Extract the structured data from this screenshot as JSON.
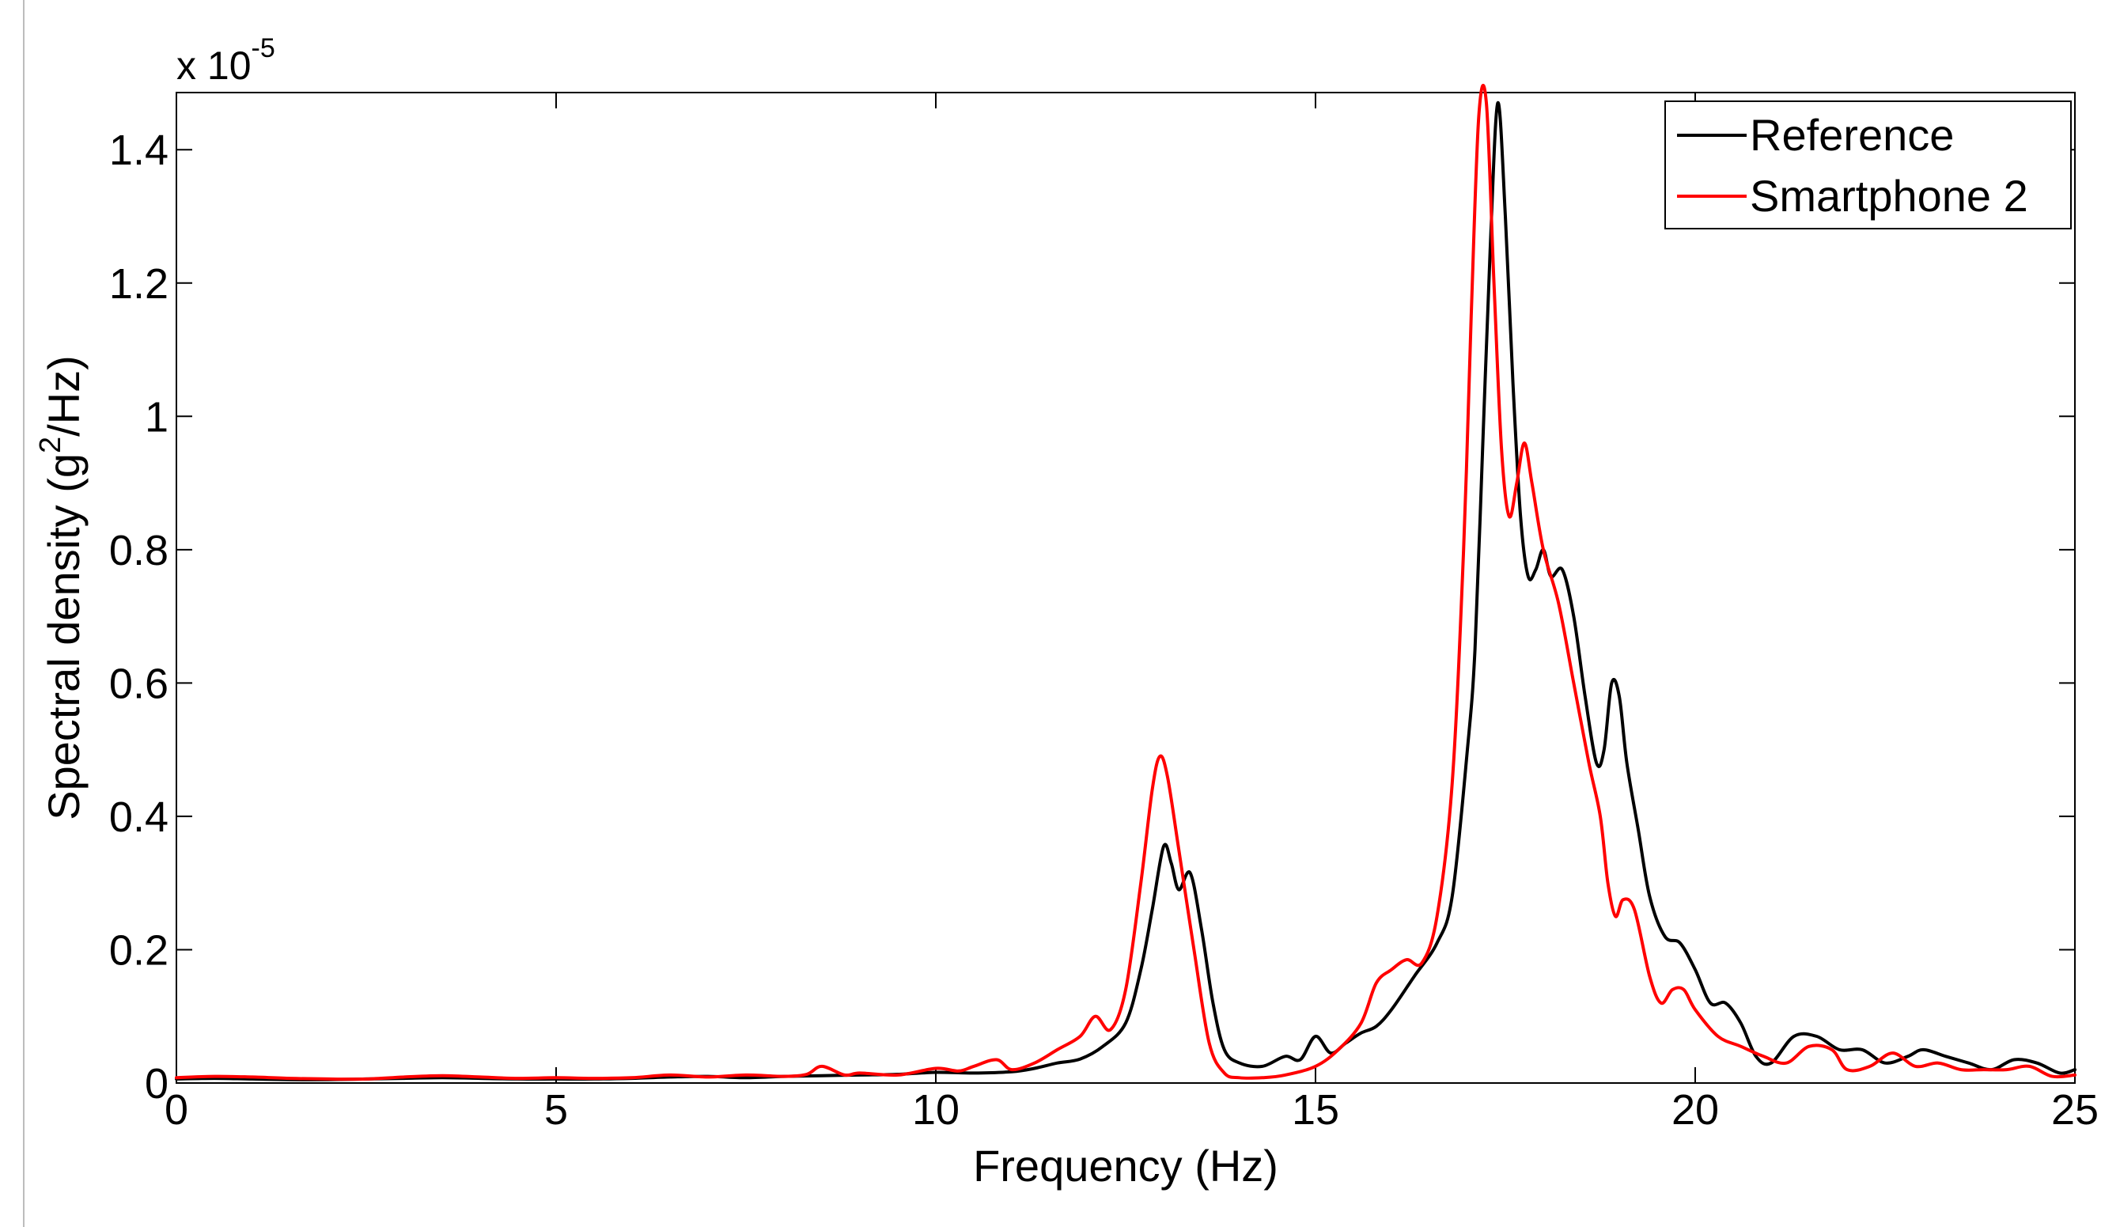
{
  "chart_data": {
    "type": "line",
    "title": "",
    "xlabel": "Frequency (Hz)",
    "ylabel_main": "Spectral density (g",
    "ylabel_sup": "2",
    "ylabel_tail": "/Hz)",
    "exponent_base": "x 10",
    "exponent_power": "-5",
    "xlim": [
      0,
      25
    ],
    "ylim": [
      0,
      1.4857
    ],
    "x_ticks": [
      0,
      5,
      10,
      15,
      20,
      25
    ],
    "x_tick_labels": [
      "0",
      "5",
      "10",
      "15",
      "20",
      "25"
    ],
    "y_ticks": [
      0,
      0.2,
      0.4,
      0.6,
      0.8,
      1.0,
      1.2,
      1.4
    ],
    "y_tick_labels": [
      "0",
      "0.2",
      "0.4",
      "0.6",
      "0.8",
      "1",
      "1.2",
      "1.4"
    ],
    "y_units_multiplier": "1e-5",
    "grid": false,
    "legend_position": "top-right",
    "series": [
      {
        "name": "Reference",
        "color": "#000000",
        "points": [
          [
            0.0,
            0.006
          ],
          [
            0.5,
            0.007
          ],
          [
            1.0,
            0.006
          ],
          [
            1.5,
            0.005
          ],
          [
            2.0,
            0.005
          ],
          [
            2.5,
            0.006
          ],
          [
            3.0,
            0.007
          ],
          [
            3.5,
            0.008
          ],
          [
            4.0,
            0.007
          ],
          [
            4.5,
            0.006
          ],
          [
            5.0,
            0.006
          ],
          [
            5.5,
            0.006
          ],
          [
            6.0,
            0.007
          ],
          [
            6.5,
            0.009
          ],
          [
            7.0,
            0.01
          ],
          [
            7.5,
            0.008
          ],
          [
            8.0,
            0.01
          ],
          [
            8.5,
            0.011
          ],
          [
            9.0,
            0.012
          ],
          [
            9.5,
            0.013
          ],
          [
            10.0,
            0.016
          ],
          [
            10.5,
            0.015
          ],
          [
            11.0,
            0.017
          ],
          [
            11.3,
            0.022
          ],
          [
            11.6,
            0.03
          ],
          [
            11.9,
            0.036
          ],
          [
            12.2,
            0.055
          ],
          [
            12.5,
            0.09
          ],
          [
            12.7,
            0.17
          ],
          [
            12.85,
            0.26
          ],
          [
            13.0,
            0.355
          ],
          [
            13.1,
            0.33
          ],
          [
            13.2,
            0.29
          ],
          [
            13.35,
            0.315
          ],
          [
            13.5,
            0.23
          ],
          [
            13.65,
            0.12
          ],
          [
            13.8,
            0.05
          ],
          [
            14.0,
            0.03
          ],
          [
            14.3,
            0.025
          ],
          [
            14.6,
            0.04
          ],
          [
            14.8,
            0.035
          ],
          [
            15.0,
            0.07
          ],
          [
            15.2,
            0.045
          ],
          [
            15.4,
            0.06
          ],
          [
            15.6,
            0.075
          ],
          [
            15.8,
            0.085
          ],
          [
            16.0,
            0.11
          ],
          [
            16.3,
            0.16
          ],
          [
            16.6,
            0.21
          ],
          [
            16.8,
            0.28
          ],
          [
            17.0,
            0.5
          ],
          [
            17.1,
            0.65
          ],
          [
            17.2,
            0.95
          ],
          [
            17.3,
            1.25
          ],
          [
            17.4,
            1.47
          ],
          [
            17.5,
            1.3
          ],
          [
            17.6,
            1.05
          ],
          [
            17.7,
            0.85
          ],
          [
            17.8,
            0.76
          ],
          [
            17.9,
            0.77
          ],
          [
            18.0,
            0.8
          ],
          [
            18.1,
            0.76
          ],
          [
            18.25,
            0.77
          ],
          [
            18.4,
            0.7
          ],
          [
            18.55,
            0.58
          ],
          [
            18.7,
            0.48
          ],
          [
            18.8,
            0.5
          ],
          [
            18.9,
            0.6
          ],
          [
            19.0,
            0.58
          ],
          [
            19.1,
            0.48
          ],
          [
            19.25,
            0.38
          ],
          [
            19.4,
            0.28
          ],
          [
            19.6,
            0.22
          ],
          [
            19.8,
            0.21
          ],
          [
            20.0,
            0.17
          ],
          [
            20.2,
            0.12
          ],
          [
            20.4,
            0.12
          ],
          [
            20.6,
            0.09
          ],
          [
            20.8,
            0.04
          ],
          [
            21.0,
            0.03
          ],
          [
            21.3,
            0.07
          ],
          [
            21.6,
            0.07
          ],
          [
            21.9,
            0.05
          ],
          [
            22.2,
            0.05
          ],
          [
            22.5,
            0.03
          ],
          [
            22.8,
            0.04
          ],
          [
            23.0,
            0.05
          ],
          [
            23.3,
            0.04
          ],
          [
            23.6,
            0.03
          ],
          [
            23.9,
            0.02
          ],
          [
            24.2,
            0.035
          ],
          [
            24.5,
            0.03
          ],
          [
            24.8,
            0.015
          ],
          [
            25.0,
            0.02
          ]
        ]
      },
      {
        "name": "Smartphone 2",
        "color": "#ff0000",
        "points": [
          [
            0.0,
            0.008
          ],
          [
            0.5,
            0.01
          ],
          [
            1.0,
            0.009
          ],
          [
            1.5,
            0.007
          ],
          [
            2.0,
            0.006
          ],
          [
            2.5,
            0.006
          ],
          [
            3.0,
            0.009
          ],
          [
            3.5,
            0.011
          ],
          [
            4.0,
            0.009
          ],
          [
            4.5,
            0.007
          ],
          [
            5.0,
            0.008
          ],
          [
            5.5,
            0.007
          ],
          [
            6.0,
            0.008
          ],
          [
            6.5,
            0.012
          ],
          [
            7.0,
            0.009
          ],
          [
            7.5,
            0.012
          ],
          [
            8.0,
            0.01
          ],
          [
            8.3,
            0.013
          ],
          [
            8.5,
            0.025
          ],
          [
            8.8,
            0.012
          ],
          [
            9.0,
            0.015
          ],
          [
            9.5,
            0.012
          ],
          [
            10.0,
            0.022
          ],
          [
            10.3,
            0.018
          ],
          [
            10.5,
            0.025
          ],
          [
            10.8,
            0.035
          ],
          [
            11.0,
            0.02
          ],
          [
            11.3,
            0.03
          ],
          [
            11.6,
            0.05
          ],
          [
            11.9,
            0.07
          ],
          [
            12.1,
            0.1
          ],
          [
            12.3,
            0.08
          ],
          [
            12.5,
            0.14
          ],
          [
            12.7,
            0.3
          ],
          [
            12.85,
            0.44
          ],
          [
            12.95,
            0.49
          ],
          [
            13.05,
            0.46
          ],
          [
            13.2,
            0.35
          ],
          [
            13.4,
            0.2
          ],
          [
            13.6,
            0.06
          ],
          [
            13.8,
            0.015
          ],
          [
            14.0,
            0.008
          ],
          [
            14.3,
            0.008
          ],
          [
            14.6,
            0.012
          ],
          [
            15.0,
            0.025
          ],
          [
            15.3,
            0.05
          ],
          [
            15.6,
            0.09
          ],
          [
            15.8,
            0.15
          ],
          [
            16.0,
            0.17
          ],
          [
            16.2,
            0.185
          ],
          [
            16.4,
            0.18
          ],
          [
            16.6,
            0.25
          ],
          [
            16.8,
            0.45
          ],
          [
            16.95,
            0.8
          ],
          [
            17.05,
            1.15
          ],
          [
            17.15,
            1.45
          ],
          [
            17.25,
            1.47
          ],
          [
            17.35,
            1.2
          ],
          [
            17.45,
            0.95
          ],
          [
            17.55,
            0.85
          ],
          [
            17.65,
            0.9
          ],
          [
            17.75,
            0.96
          ],
          [
            17.85,
            0.9
          ],
          [
            18.0,
            0.8
          ],
          [
            18.2,
            0.72
          ],
          [
            18.4,
            0.6
          ],
          [
            18.6,
            0.48
          ],
          [
            18.75,
            0.4
          ],
          [
            18.85,
            0.3
          ],
          [
            18.95,
            0.25
          ],
          [
            19.05,
            0.275
          ],
          [
            19.2,
            0.26
          ],
          [
            19.4,
            0.16
          ],
          [
            19.55,
            0.12
          ],
          [
            19.7,
            0.14
          ],
          [
            19.85,
            0.14
          ],
          [
            20.0,
            0.11
          ],
          [
            20.3,
            0.07
          ],
          [
            20.6,
            0.055
          ],
          [
            20.9,
            0.04
          ],
          [
            21.2,
            0.03
          ],
          [
            21.5,
            0.055
          ],
          [
            21.8,
            0.05
          ],
          [
            22.0,
            0.02
          ],
          [
            22.3,
            0.025
          ],
          [
            22.6,
            0.045
          ],
          [
            22.9,
            0.025
          ],
          [
            23.2,
            0.03
          ],
          [
            23.5,
            0.02
          ],
          [
            23.8,
            0.02
          ],
          [
            24.1,
            0.02
          ],
          [
            24.4,
            0.025
          ],
          [
            24.7,
            0.01
          ],
          [
            25.0,
            0.012
          ]
        ]
      }
    ]
  }
}
